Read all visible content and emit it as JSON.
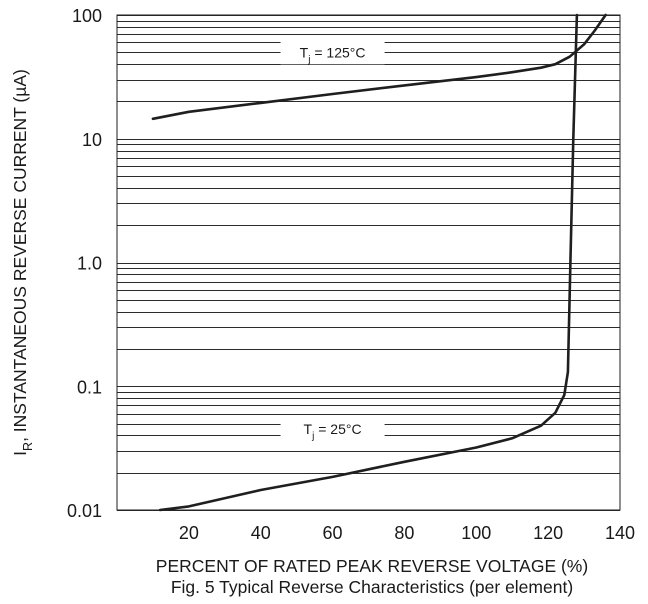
{
  "chart_data": {
    "type": "line",
    "title": "Fig. 5  Typical Reverse Characteristics (per element)",
    "xlabel": "PERCENT OF RATED PEAK  REVERSE VOLTAGE (%)",
    "ylabel": {
      "prefix": "I",
      "subscript": "R",
      "suffix": ", INSTANTANEOUS REVERSE CURRENT (µA)"
    },
    "xlim": [
      0,
      140
    ],
    "ylim": [
      0.01,
      100
    ],
    "yscale": "log",
    "grid": true,
    "x_ticks": [
      20,
      40,
      60,
      80,
      100,
      120,
      140
    ],
    "x_tick_labels": [
      "20",
      "40",
      "60",
      "80",
      "100",
      "120",
      "140"
    ],
    "y_ticks": [
      0.01,
      0.1,
      1,
      10,
      100
    ],
    "y_tick_labels": [
      "0.01",
      "0.1",
      "1.0",
      "10",
      "100"
    ],
    "series": [
      {
        "label_parts": [
          "T",
          "j",
          " = 125°C"
        ],
        "x": [
          10,
          20,
          40,
          60,
          80,
          100,
          110,
          118,
          122,
          126,
          130,
          133,
          136
        ],
        "y": [
          14.5,
          16.5,
          19.5,
          23.0,
          27.0,
          31.5,
          34.5,
          37.5,
          40.0,
          46.0,
          58.0,
          75.0,
          100
        ]
      },
      {
        "label_parts": [
          "T",
          "j",
          " = 25°C"
        ],
        "x": [
          12,
          20,
          40,
          60,
          80,
          100,
          110,
          118,
          122,
          124.5,
          125.5,
          126.2,
          127,
          128
        ],
        "y": [
          0.01,
          0.0107,
          0.0145,
          0.0185,
          0.0245,
          0.032,
          0.038,
          0.048,
          0.061,
          0.085,
          0.13,
          1.0,
          10,
          100
        ]
      }
    ]
  }
}
